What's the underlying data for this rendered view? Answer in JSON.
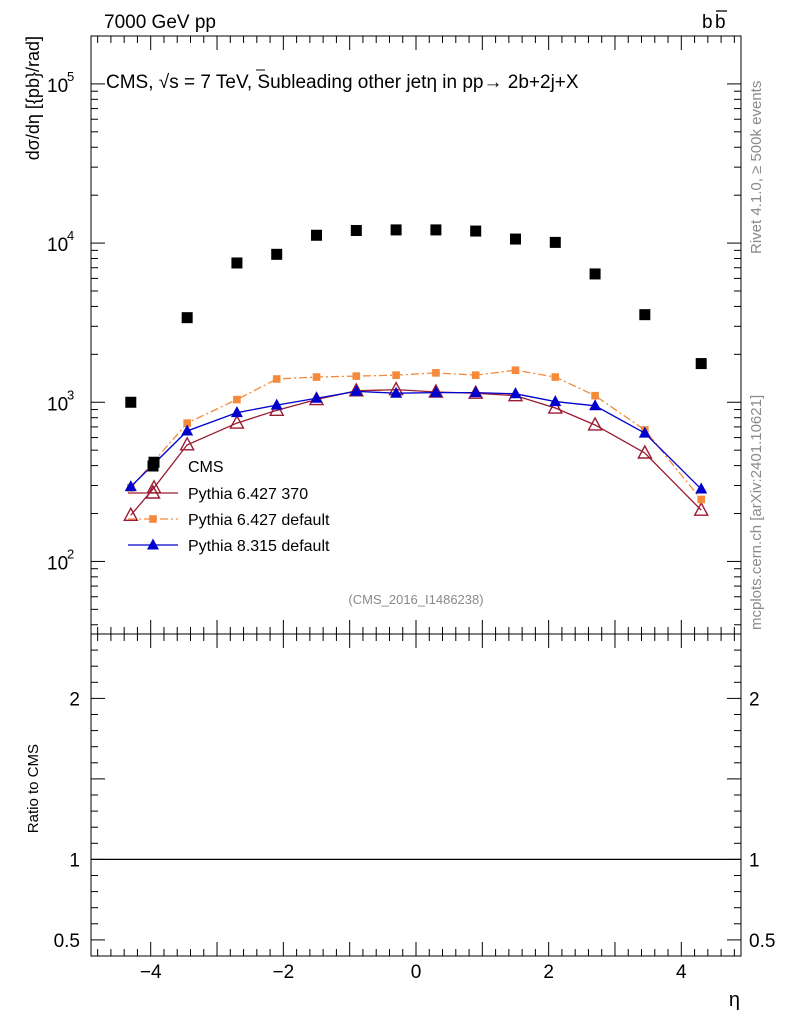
{
  "header": {
    "energy_label": "7000 GeV pp",
    "process_label_base": "b",
    "process_label_bar": "b"
  },
  "side_labels": {
    "rivet": "Rivet 4.1.0, ≥ 500k events",
    "mcplots": "mcplots.cern.ch [arXiv:2401.10621]"
  },
  "chart_data": {
    "type": "scatter",
    "title_prefix": "CMS, ",
    "title_sqrt": "√",
    "title_suffix": "s = 7 TeV, Subleading other jetη in pp→  2b+2j+X",
    "analysis_id": "(CMS_2016_I1486238)",
    "xlabel": "η",
    "ylabel": "dσ/dη [{pb}/rad]",
    "ratio_ylabel": "Ratio to CMS",
    "xlim": [
      -4.9,
      4.9
    ],
    "ylim": [
      35,
      200000
    ],
    "yscale": "log",
    "ratio_ylim": [
      0.4,
      2.4
    ],
    "x_ticks": [
      -4,
      -2,
      0,
      2,
      4
    ],
    "x_tick_labels": [
      "−4",
      "−2",
      "0",
      "2",
      "4"
    ],
    "y_ticks": [
      100,
      1000,
      10000,
      100000
    ],
    "y_tick_labels": [
      {
        "base": "10",
        "exp": "2"
      },
      {
        "base": "10",
        "exp": "3"
      },
      {
        "base": "10",
        "exp": "4"
      },
      {
        "base": "10",
        "exp": "5"
      }
    ],
    "ratio_ticks": [
      0.5,
      1,
      2
    ],
    "ratio_tick_labels": [
      "0.5",
      "1",
      "2"
    ],
    "legend_position": "lower-left",
    "series": [
      {
        "name": "CMS",
        "marker": "square",
        "color": "#000000",
        "line": "none",
        "x": [
          -4.3,
          -3.95,
          -3.45,
          -2.7,
          -2.1,
          -1.5,
          -0.9,
          -0.3,
          0.3,
          0.9,
          1.5,
          2.1,
          2.7,
          3.45,
          4.3
        ],
        "y": [
          1000,
          420,
          3400,
          7500,
          8500,
          11200,
          12000,
          12100,
          12100,
          11900,
          10600,
          10100,
          6400,
          3550,
          1750
        ]
      },
      {
        "name": "Pythia 6.427 370",
        "marker": "open-triangle",
        "color": "#9b1b30",
        "line": "solid",
        "x": [
          -4.3,
          -3.95,
          -3.45,
          -2.7,
          -2.1,
          -1.5,
          -0.9,
          -0.3,
          0.3,
          0.9,
          1.5,
          2.1,
          2.7,
          3.45,
          4.3
        ],
        "y": [
          195,
          290,
          540,
          740,
          890,
          1040,
          1180,
          1200,
          1160,
          1140,
          1100,
          920,
          720,
          480,
          210
        ]
      },
      {
        "name": "Pythia 6.427 default",
        "marker": "square-small",
        "color": "#f58a3b",
        "line": "dash-dot",
        "x": [
          -4.3,
          -3.45,
          -2.7,
          -2.1,
          -1.5,
          -0.9,
          -0.3,
          0.3,
          0.9,
          1.5,
          2.1,
          2.7,
          3.45,
          4.3
        ],
        "y": [
          290,
          740,
          1040,
          1400,
          1440,
          1460,
          1480,
          1530,
          1480,
          1590,
          1440,
          1100,
          670,
          245
        ]
      },
      {
        "name": "Pythia 8.315 default",
        "marker": "filled-triangle",
        "color": "#0000cc",
        "line": "solid",
        "x": [
          -4.3,
          -3.45,
          -2.7,
          -2.1,
          -1.5,
          -0.9,
          -0.3,
          0.3,
          0.9,
          1.5,
          2.1,
          2.7,
          3.45,
          4.3
        ],
        "y": [
          295,
          660,
          860,
          960,
          1060,
          1170,
          1140,
          1150,
          1150,
          1130,
          1010,
          950,
          640,
          285
        ]
      }
    ]
  }
}
